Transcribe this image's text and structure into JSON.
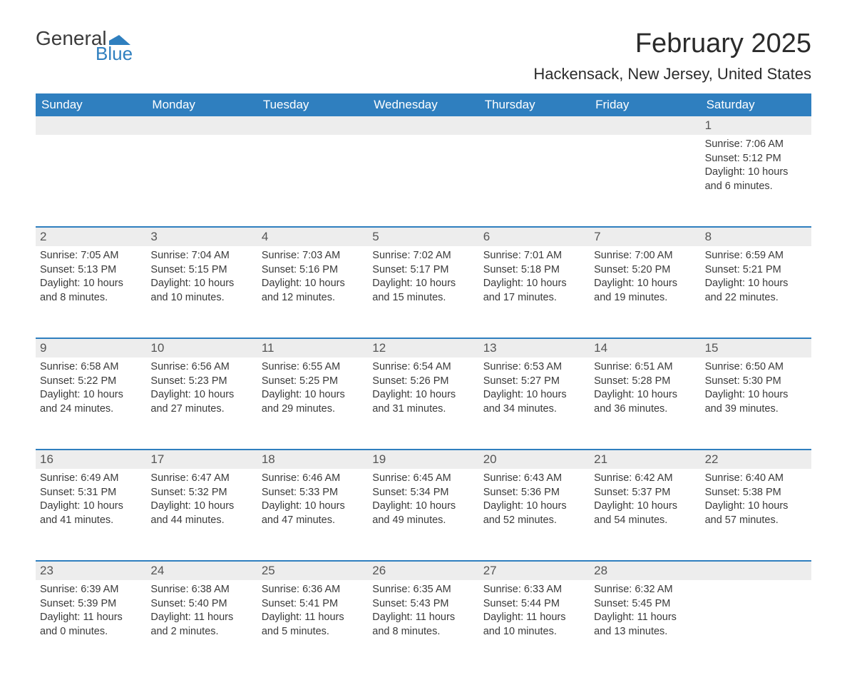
{
  "logo": {
    "text1": "General",
    "text2": "Blue",
    "flag_color": "#2f7fbf"
  },
  "title": "February 2025",
  "location": "Hackensack, New Jersey, United States",
  "day_headers": [
    "Sunday",
    "Monday",
    "Tuesday",
    "Wednesday",
    "Thursday",
    "Friday",
    "Saturday"
  ],
  "colors": {
    "header_bg": "#2f7fbf",
    "header_text": "#ffffff",
    "daynum_bg": "#ededed",
    "week_border": "#2f7fbf",
    "body_text": "#3a3a3a"
  },
  "weeks": [
    {
      "nums": [
        "",
        "",
        "",
        "",
        "",
        "",
        "1"
      ],
      "cells": [
        {},
        {},
        {},
        {},
        {},
        {},
        {
          "sunrise": "Sunrise: 7:06 AM",
          "sunset": "Sunset: 5:12 PM",
          "d1": "Daylight: 10 hours",
          "d2": "and 6 minutes."
        }
      ]
    },
    {
      "nums": [
        "2",
        "3",
        "4",
        "5",
        "6",
        "7",
        "8"
      ],
      "cells": [
        {
          "sunrise": "Sunrise: 7:05 AM",
          "sunset": "Sunset: 5:13 PM",
          "d1": "Daylight: 10 hours",
          "d2": "and 8 minutes."
        },
        {
          "sunrise": "Sunrise: 7:04 AM",
          "sunset": "Sunset: 5:15 PM",
          "d1": "Daylight: 10 hours",
          "d2": "and 10 minutes."
        },
        {
          "sunrise": "Sunrise: 7:03 AM",
          "sunset": "Sunset: 5:16 PM",
          "d1": "Daylight: 10 hours",
          "d2": "and 12 minutes."
        },
        {
          "sunrise": "Sunrise: 7:02 AM",
          "sunset": "Sunset: 5:17 PM",
          "d1": "Daylight: 10 hours",
          "d2": "and 15 minutes."
        },
        {
          "sunrise": "Sunrise: 7:01 AM",
          "sunset": "Sunset: 5:18 PM",
          "d1": "Daylight: 10 hours",
          "d2": "and 17 minutes."
        },
        {
          "sunrise": "Sunrise: 7:00 AM",
          "sunset": "Sunset: 5:20 PM",
          "d1": "Daylight: 10 hours",
          "d2": "and 19 minutes."
        },
        {
          "sunrise": "Sunrise: 6:59 AM",
          "sunset": "Sunset: 5:21 PM",
          "d1": "Daylight: 10 hours",
          "d2": "and 22 minutes."
        }
      ]
    },
    {
      "nums": [
        "9",
        "10",
        "11",
        "12",
        "13",
        "14",
        "15"
      ],
      "cells": [
        {
          "sunrise": "Sunrise: 6:58 AM",
          "sunset": "Sunset: 5:22 PM",
          "d1": "Daylight: 10 hours",
          "d2": "and 24 minutes."
        },
        {
          "sunrise": "Sunrise: 6:56 AM",
          "sunset": "Sunset: 5:23 PM",
          "d1": "Daylight: 10 hours",
          "d2": "and 27 minutes."
        },
        {
          "sunrise": "Sunrise: 6:55 AM",
          "sunset": "Sunset: 5:25 PM",
          "d1": "Daylight: 10 hours",
          "d2": "and 29 minutes."
        },
        {
          "sunrise": "Sunrise: 6:54 AM",
          "sunset": "Sunset: 5:26 PM",
          "d1": "Daylight: 10 hours",
          "d2": "and 31 minutes."
        },
        {
          "sunrise": "Sunrise: 6:53 AM",
          "sunset": "Sunset: 5:27 PM",
          "d1": "Daylight: 10 hours",
          "d2": "and 34 minutes."
        },
        {
          "sunrise": "Sunrise: 6:51 AM",
          "sunset": "Sunset: 5:28 PM",
          "d1": "Daylight: 10 hours",
          "d2": "and 36 minutes."
        },
        {
          "sunrise": "Sunrise: 6:50 AM",
          "sunset": "Sunset: 5:30 PM",
          "d1": "Daylight: 10 hours",
          "d2": "and 39 minutes."
        }
      ]
    },
    {
      "nums": [
        "16",
        "17",
        "18",
        "19",
        "20",
        "21",
        "22"
      ],
      "cells": [
        {
          "sunrise": "Sunrise: 6:49 AM",
          "sunset": "Sunset: 5:31 PM",
          "d1": "Daylight: 10 hours",
          "d2": "and 41 minutes."
        },
        {
          "sunrise": "Sunrise: 6:47 AM",
          "sunset": "Sunset: 5:32 PM",
          "d1": "Daylight: 10 hours",
          "d2": "and 44 minutes."
        },
        {
          "sunrise": "Sunrise: 6:46 AM",
          "sunset": "Sunset: 5:33 PM",
          "d1": "Daylight: 10 hours",
          "d2": "and 47 minutes."
        },
        {
          "sunrise": "Sunrise: 6:45 AM",
          "sunset": "Sunset: 5:34 PM",
          "d1": "Daylight: 10 hours",
          "d2": "and 49 minutes."
        },
        {
          "sunrise": "Sunrise: 6:43 AM",
          "sunset": "Sunset: 5:36 PM",
          "d1": "Daylight: 10 hours",
          "d2": "and 52 minutes."
        },
        {
          "sunrise": "Sunrise: 6:42 AM",
          "sunset": "Sunset: 5:37 PM",
          "d1": "Daylight: 10 hours",
          "d2": "and 54 minutes."
        },
        {
          "sunrise": "Sunrise: 6:40 AM",
          "sunset": "Sunset: 5:38 PM",
          "d1": "Daylight: 10 hours",
          "d2": "and 57 minutes."
        }
      ]
    },
    {
      "nums": [
        "23",
        "24",
        "25",
        "26",
        "27",
        "28",
        ""
      ],
      "cells": [
        {
          "sunrise": "Sunrise: 6:39 AM",
          "sunset": "Sunset: 5:39 PM",
          "d1": "Daylight: 11 hours",
          "d2": "and 0 minutes."
        },
        {
          "sunrise": "Sunrise: 6:38 AM",
          "sunset": "Sunset: 5:40 PM",
          "d1": "Daylight: 11 hours",
          "d2": "and 2 minutes."
        },
        {
          "sunrise": "Sunrise: 6:36 AM",
          "sunset": "Sunset: 5:41 PM",
          "d1": "Daylight: 11 hours",
          "d2": "and 5 minutes."
        },
        {
          "sunrise": "Sunrise: 6:35 AM",
          "sunset": "Sunset: 5:43 PM",
          "d1": "Daylight: 11 hours",
          "d2": "and 8 minutes."
        },
        {
          "sunrise": "Sunrise: 6:33 AM",
          "sunset": "Sunset: 5:44 PM",
          "d1": "Daylight: 11 hours",
          "d2": "and 10 minutes."
        },
        {
          "sunrise": "Sunrise: 6:32 AM",
          "sunset": "Sunset: 5:45 PM",
          "d1": "Daylight: 11 hours",
          "d2": "and 13 minutes."
        },
        {}
      ]
    }
  ]
}
